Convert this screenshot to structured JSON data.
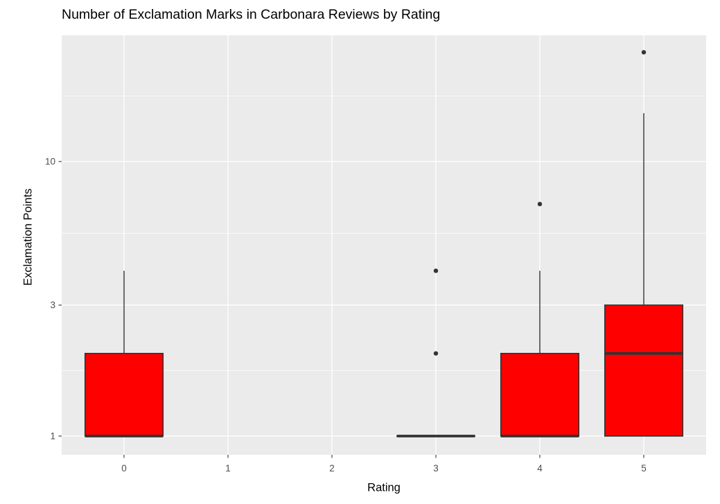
{
  "chart_data": {
    "type": "boxplot",
    "title": "Number of Exclamation Marks in Carbonara Reviews by Rating",
    "xlabel": "Rating",
    "ylabel": "Exclamation Points",
    "x_categories": [
      "0",
      "1",
      "2",
      "3",
      "4",
      "5"
    ],
    "y_scale": "log10",
    "y_ticks": [
      1,
      3,
      10
    ],
    "y_minor_gridlines": [
      1.7321,
      5.4772,
      17.3205
    ],
    "ylim": [
      0.85,
      29
    ],
    "grid": "on",
    "legend": "none",
    "groups": [
      {
        "rating": "0",
        "box": {
          "min": 1,
          "q1": 1,
          "median": 1,
          "q3": 2,
          "whisker_high": 4,
          "outliers": []
        }
      },
      {
        "rating": "1",
        "box": null
      },
      {
        "rating": "2",
        "box": null
      },
      {
        "rating": "3",
        "box": {
          "min": 1,
          "q1": 1,
          "median": 1,
          "q3": 1,
          "whisker_high": 1,
          "outliers": [
            2,
            4
          ]
        }
      },
      {
        "rating": "4",
        "box": {
          "min": 1,
          "q1": 1,
          "median": 1,
          "q3": 2,
          "whisker_high": 4,
          "outliers": [
            7
          ]
        }
      },
      {
        "rating": "5",
        "box": {
          "min": 1,
          "q1": 1,
          "median": 2,
          "q3": 3,
          "whisker_high": 15,
          "outliers": [
            25
          ]
        }
      }
    ],
    "colors": {
      "box_fill": "#FF0000",
      "box_border": "#333333",
      "median_line": "#333333",
      "whisker": "#333333",
      "outlier": "#333333",
      "panel_bg": "#EBEBEB",
      "gridline": "#FFFFFF",
      "tick_mark": "#333333",
      "tick_label": "#4D4D4D",
      "axis_title": "#000000",
      "title": "#000000",
      "figure_bg": "#FFFFFF"
    }
  }
}
